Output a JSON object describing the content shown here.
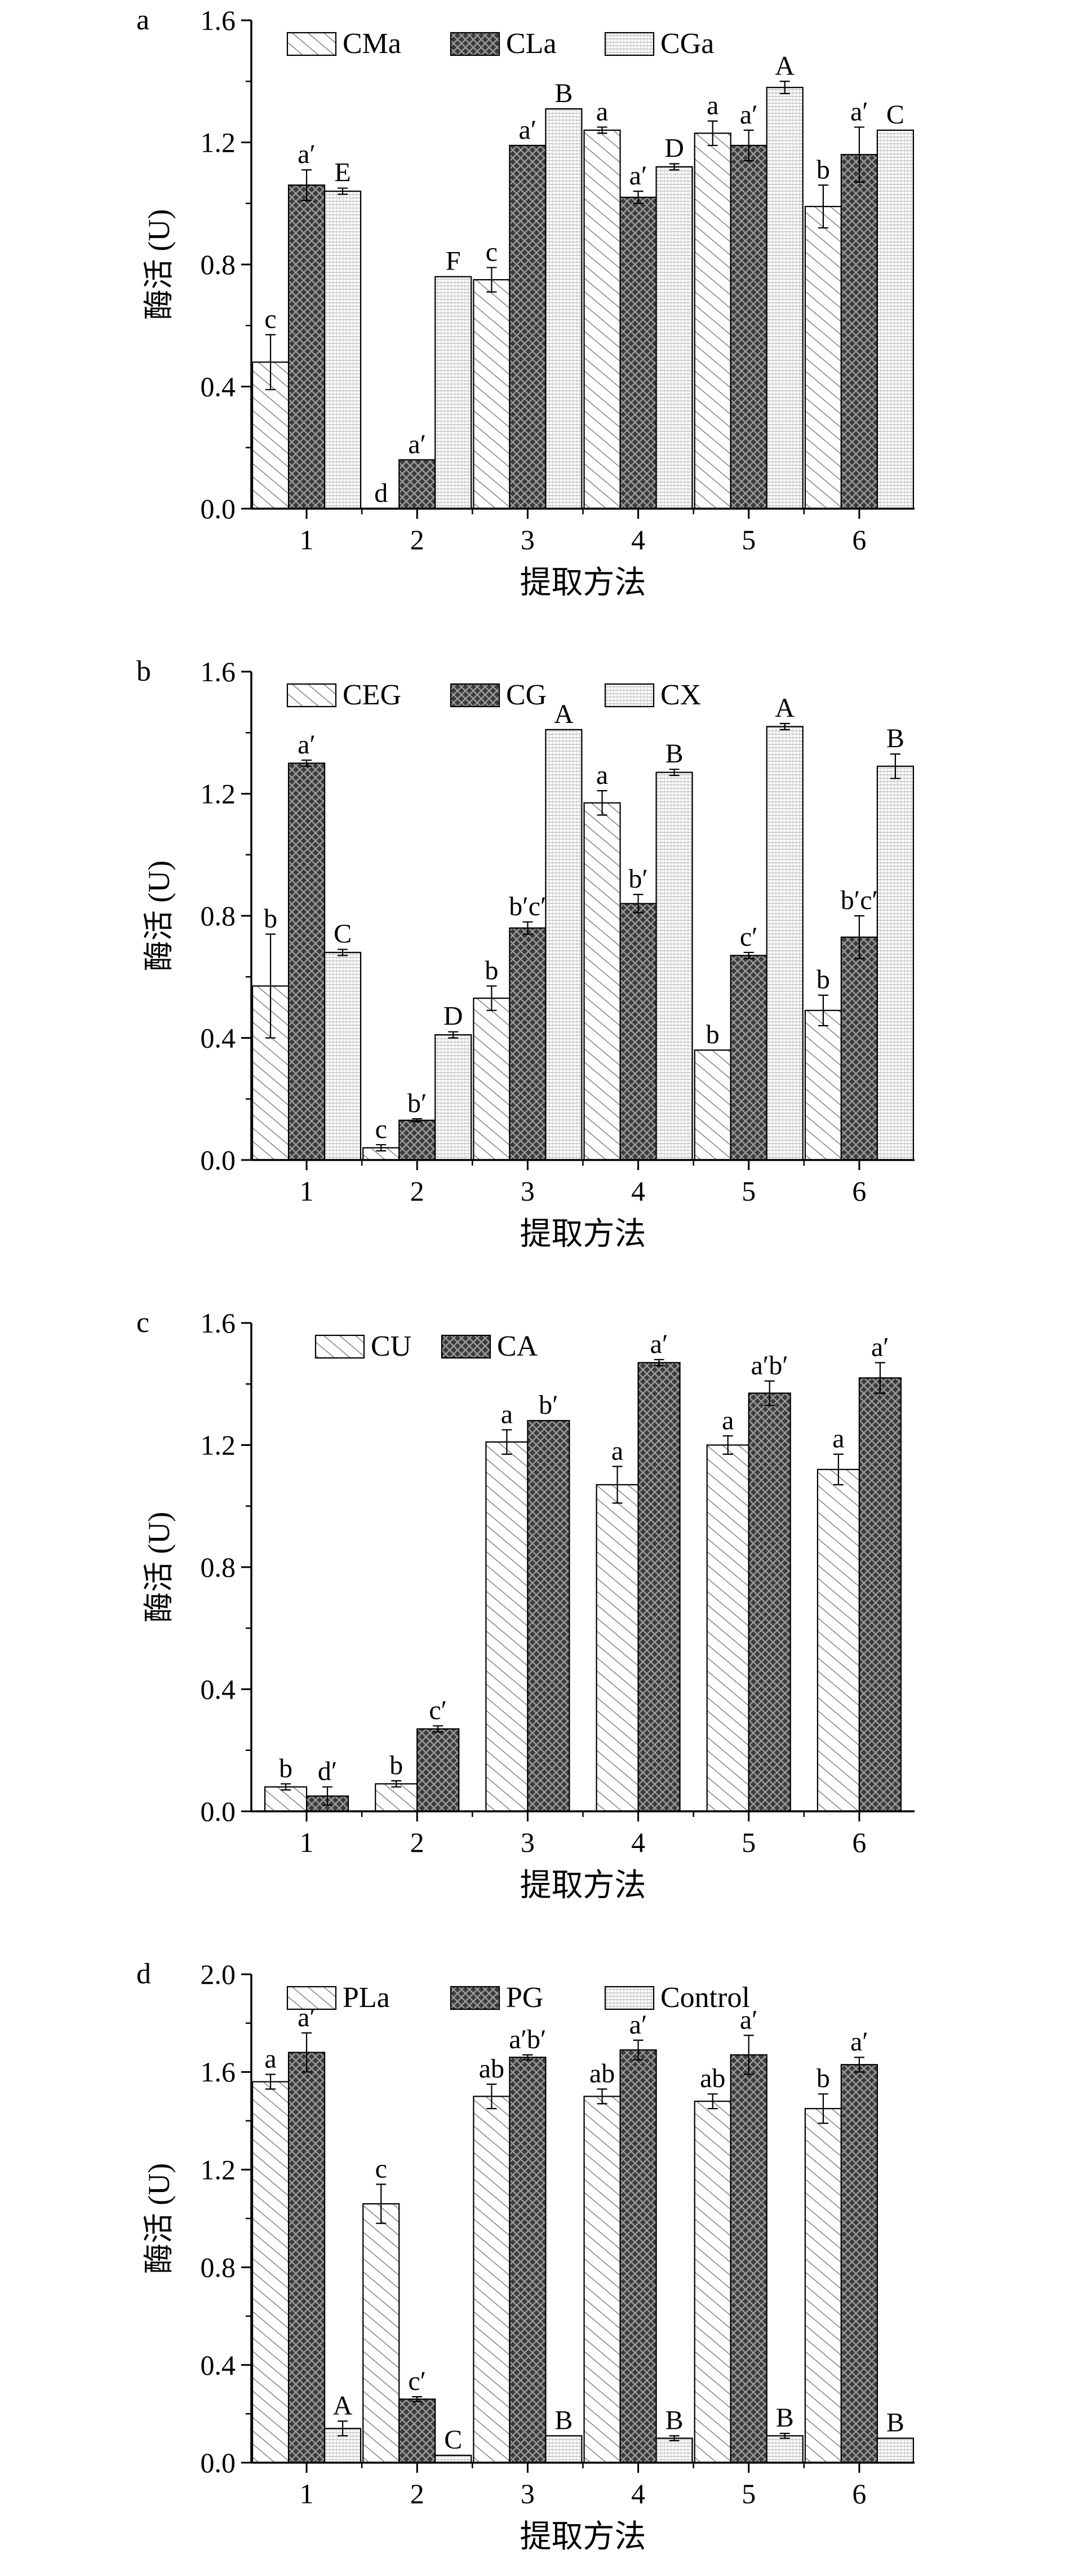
{
  "figure": {
    "xlabel": "提取方法",
    "ylabel": "酶活 (U)"
  },
  "chart_data": [
    {
      "panel": "a",
      "type": "bar",
      "categories": [
        "1",
        "2",
        "3",
        "4",
        "5",
        "6"
      ],
      "ylim": [
        0,
        1.6
      ],
      "yticks": [
        "0.0",
        "0.4",
        "0.8",
        "1.2",
        "1.6"
      ],
      "xlabel": "提取方法",
      "ylabel": "酶活 (U)",
      "legend": "top-left",
      "series": [
        {
          "name": "CMa",
          "pattern": "diag",
          "values": [
            0.48,
            0.0,
            0.75,
            1.24,
            1.23,
            0.99
          ],
          "errors": [
            0.09,
            0,
            0.04,
            0.01,
            0.04,
            0.07
          ],
          "labels": [
            "c",
            "d",
            "c",
            "a",
            "a",
            "b"
          ]
        },
        {
          "name": "CLa",
          "pattern": "cross",
          "values": [
            1.06,
            0.16,
            1.19,
            1.02,
            1.19,
            1.16
          ],
          "errors": [
            0.05,
            0,
            0,
            0.02,
            0.05,
            0.09
          ],
          "labels": [
            "a′",
            "a′",
            "a′",
            "a′",
            "a′",
            "a′"
          ]
        },
        {
          "name": "CGa",
          "pattern": "dots",
          "values": [
            1.04,
            0.76,
            1.31,
            1.12,
            1.38,
            1.24
          ],
          "errors": [
            0.01,
            0,
            0,
            0.01,
            0.02,
            0
          ],
          "labels": [
            "E",
            "F",
            "B",
            "D",
            "A",
            "C"
          ]
        }
      ]
    },
    {
      "panel": "b",
      "type": "bar",
      "categories": [
        "1",
        "2",
        "3",
        "4",
        "5",
        "6"
      ],
      "ylim": [
        0,
        1.6
      ],
      "yticks": [
        "0.0",
        "0.4",
        "0.8",
        "1.2",
        "1.6"
      ],
      "xlabel": "提取方法",
      "ylabel": "酶活 (U)",
      "legend": "top-left",
      "series": [
        {
          "name": "CEG",
          "pattern": "diag",
          "values": [
            0.57,
            0.04,
            0.53,
            1.17,
            0.36,
            0.49
          ],
          "errors": [
            0.17,
            0.01,
            0.04,
            0.04,
            0,
            0.05
          ],
          "labels": [
            "b",
            "c",
            "b",
            "a",
            "b",
            "b"
          ]
        },
        {
          "name": "CG",
          "pattern": "cross",
          "values": [
            1.3,
            0.13,
            0.76,
            0.84,
            0.67,
            0.73
          ],
          "errors": [
            0.01,
            0.005,
            0.02,
            0.03,
            0.01,
            0.07
          ],
          "labels": [
            "a′",
            "b′",
            "b′c′",
            "b′",
            "c′",
            "b′c′"
          ]
        },
        {
          "name": "CX",
          "pattern": "dots",
          "values": [
            0.68,
            0.41,
            1.41,
            1.27,
            1.42,
            1.29
          ],
          "errors": [
            0.01,
            0.01,
            0,
            0.01,
            0.01,
            0.04
          ],
          "labels": [
            "C",
            "D",
            "A",
            "B",
            "A",
            "B"
          ]
        }
      ]
    },
    {
      "panel": "c",
      "type": "bar",
      "categories": [
        "1",
        "2",
        "3",
        "4",
        "5",
        "6"
      ],
      "ylim": [
        0,
        1.6
      ],
      "yticks": [
        "0.0",
        "0.4",
        "0.8",
        "1.2",
        "1.6"
      ],
      "xlabel": "提取方法",
      "ylabel": "酶活 (U)",
      "legend": "top-left",
      "series": [
        {
          "name": "CU",
          "pattern": "diag",
          "values": [
            0.08,
            0.09,
            1.21,
            1.07,
            1.2,
            1.12
          ],
          "errors": [
            0.01,
            0.01,
            0.04,
            0.06,
            0.03,
            0.05
          ],
          "labels": [
            "b",
            "b",
            "a",
            "a",
            "a",
            "a"
          ]
        },
        {
          "name": "CA",
          "pattern": "cross",
          "values": [
            0.05,
            0.27,
            1.28,
            1.47,
            1.37,
            1.42
          ],
          "errors": [
            0.03,
            0.01,
            0,
            0.01,
            0.04,
            0.05
          ],
          "labels": [
            "d′",
            "c′",
            "b′",
            "a′",
            "a′b′",
            "a′"
          ]
        }
      ]
    },
    {
      "panel": "d",
      "type": "bar",
      "categories": [
        "1",
        "2",
        "3",
        "4",
        "5",
        "6"
      ],
      "ylim": [
        0,
        2.0
      ],
      "yticks": [
        "0.0",
        "0.4",
        "0.8",
        "1.2",
        "1.6",
        "2.0"
      ],
      "xlabel": "提取方法",
      "ylabel": "酶活 (U)",
      "legend": "top-left",
      "series": [
        {
          "name": "PLa",
          "pattern": "diag",
          "values": [
            1.56,
            1.06,
            1.5,
            1.5,
            1.48,
            1.45
          ],
          "errors": [
            0.03,
            0.08,
            0.05,
            0.03,
            0.03,
            0.06
          ],
          "labels": [
            "a",
            "c",
            "ab",
            "ab",
            "ab",
            "b"
          ]
        },
        {
          "name": "PG",
          "pattern": "cross",
          "values": [
            1.68,
            0.26,
            1.66,
            1.69,
            1.67,
            1.63
          ],
          "errors": [
            0.08,
            0.01,
            0.01,
            0.04,
            0.08,
            0.03
          ],
          "labels": [
            "a′",
            "c′",
            "a′b′",
            "a′",
            "a′",
            "a′"
          ]
        },
        {
          "name": "Control",
          "pattern": "dots",
          "values": [
            0.14,
            0.03,
            0.11,
            0.1,
            0.11,
            0.1
          ],
          "errors": [
            0.03,
            0,
            0,
            0.01,
            0.01,
            0
          ],
          "labels": [
            "A",
            "C",
            "B",
            "B",
            "B",
            "B"
          ]
        }
      ]
    }
  ]
}
